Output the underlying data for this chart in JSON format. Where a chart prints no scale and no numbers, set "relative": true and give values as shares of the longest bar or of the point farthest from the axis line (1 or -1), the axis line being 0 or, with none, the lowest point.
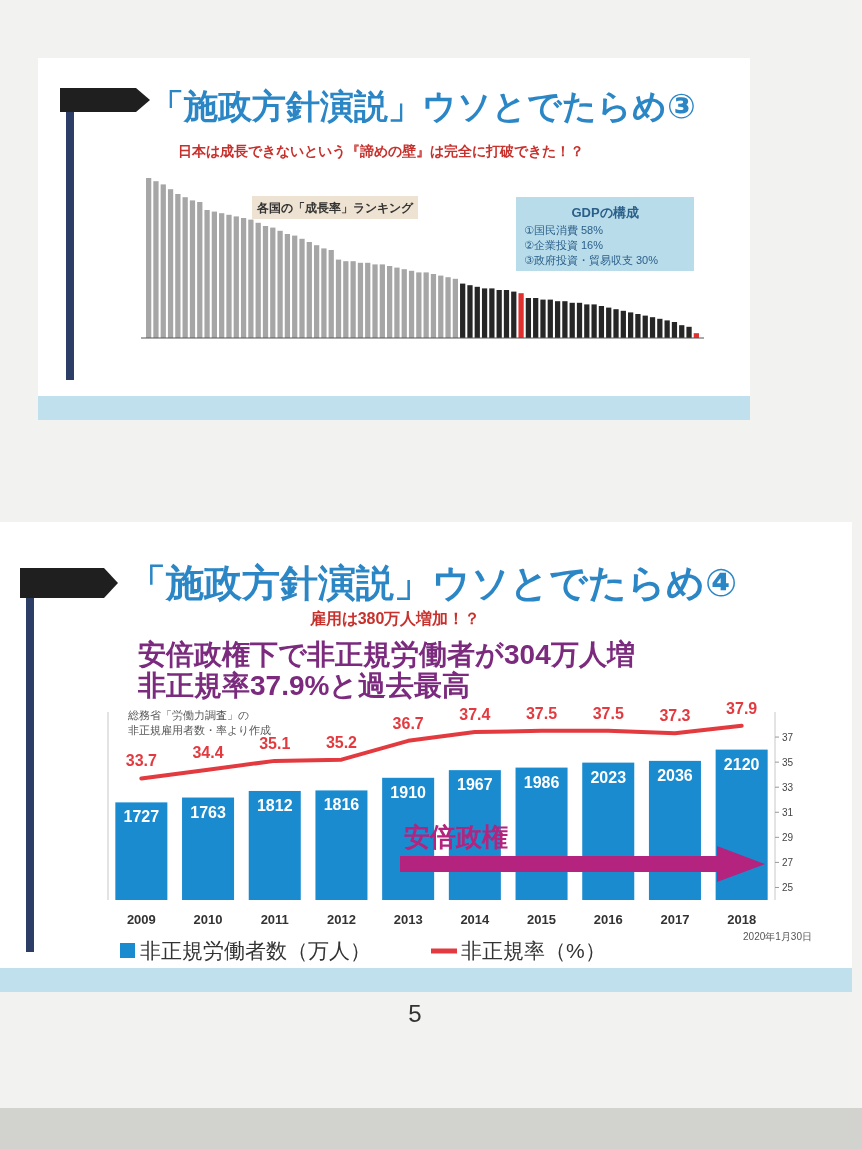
{
  "chart_data": [
    {
      "type": "bar",
      "title": "「施政方針演説」ウソとでたらめ③",
      "subtitle": "日本は成長できないという『諦めの壁』は完全に打破できた！？",
      "annotations": [
        "各国の「成長率」ランキング",
        "GDPの構成",
        "①国民消費 58%",
        "②企業投資 16%",
        "③政府投資・貿易収支 30%"
      ],
      "relative": true,
      "categories": [
        null,
        null,
        null,
        null,
        null,
        null,
        null,
        null,
        null,
        null,
        null,
        null,
        null,
        null,
        null,
        null,
        null,
        null,
        null,
        null,
        null,
        null,
        null,
        null,
        null,
        null,
        null,
        null,
        null,
        null,
        null,
        null,
        null,
        null,
        null,
        null,
        null,
        null,
        null,
        null,
        null,
        null,
        null,
        null,
        null,
        null,
        null,
        null,
        null,
        null,
        null,
        null,
        null,
        null,
        null,
        null,
        null,
        null,
        null,
        null,
        null,
        null,
        null,
        null,
        null,
        null,
        null,
        null,
        null,
        null,
        null,
        null,
        null,
        null,
        null,
        null
      ],
      "values": [
        1.0,
        0.98,
        0.96,
        0.93,
        0.9,
        0.88,
        0.86,
        0.85,
        0.8,
        0.79,
        0.78,
        0.77,
        0.76,
        0.75,
        0.74,
        0.72,
        0.7,
        0.69,
        0.67,
        0.65,
        0.64,
        0.62,
        0.6,
        0.58,
        0.56,
        0.55,
        0.49,
        0.48,
        0.48,
        0.47,
        0.47,
        0.46,
        0.46,
        0.45,
        0.44,
        0.43,
        0.42,
        0.41,
        0.41,
        0.4,
        0.39,
        0.38,
        0.37,
        0.34,
        0.33,
        0.32,
        0.31,
        0.31,
        0.3,
        0.3,
        0.29,
        0.28,
        0.25,
        0.25,
        0.24,
        0.24,
        0.23,
        0.23,
        0.22,
        0.22,
        0.21,
        0.21,
        0.2,
        0.19,
        0.18,
        0.17,
        0.16,
        0.15,
        0.14,
        0.13,
        0.12,
        0.11,
        0.1,
        0.08,
        0.07,
        0.03
      ],
      "colors": [
        "#a6a6a6",
        "#a6a6a6",
        "#a6a6a6",
        "#a6a6a6",
        "#a6a6a6",
        "#a6a6a6",
        "#a6a6a6",
        "#a6a6a6",
        "#a6a6a6",
        "#a6a6a6",
        "#a6a6a6",
        "#a6a6a6",
        "#a6a6a6",
        "#a6a6a6",
        "#a6a6a6",
        "#a6a6a6",
        "#a6a6a6",
        "#a6a6a6",
        "#a6a6a6",
        "#a6a6a6",
        "#a6a6a6",
        "#a6a6a6",
        "#a6a6a6",
        "#a6a6a6",
        "#a6a6a6",
        "#a6a6a6",
        "#a6a6a6",
        "#a6a6a6",
        "#a6a6a6",
        "#a6a6a6",
        "#a6a6a6",
        "#a6a6a6",
        "#a6a6a6",
        "#a6a6a6",
        "#a6a6a6",
        "#a6a6a6",
        "#a6a6a6",
        "#a6a6a6",
        "#a6a6a6",
        "#a6a6a6",
        "#a6a6a6",
        "#a6a6a6",
        "#a6a6a6",
        "#262626",
        "#262626",
        "#262626",
        "#262626",
        "#262626",
        "#262626",
        "#262626",
        "#262626",
        "#e03030",
        "#262626",
        "#262626",
        "#262626",
        "#262626",
        "#262626",
        "#262626",
        "#262626",
        "#262626",
        "#262626",
        "#262626",
        "#262626",
        "#262626",
        "#262626",
        "#262626",
        "#262626",
        "#262626",
        "#262626",
        "#262626",
        "#262626",
        "#262626",
        "#262626",
        "#262626",
        "#262626",
        "#e03030"
      ]
    },
    {
      "type": "bar",
      "title": "「施政方針演説」ウソとでたらめ④",
      "subtitle": "雇用は380万人増加！？",
      "annotations": [
        "安倍政権下で非正規労働者が304万人増",
        "非正規率37.9%と過去最高",
        "総務省「労働力調査」の",
        "非正規雇用者数・率より作成",
        "2020年1月30日",
        "5",
        "安倍政権"
      ],
      "categories": [
        "2009",
        "2010",
        "2011",
        "2012",
        "2013",
        "2014",
        "2015",
        "2016",
        "2017",
        "2018"
      ],
      "series": [
        {
          "name": "非正規労働者数（万人）",
          "type": "bar",
          "color": "#1b8bd0",
          "values": [
            1727,
            1763,
            1812,
            1816,
            1910,
            1967,
            1986,
            2023,
            2036,
            2120
          ]
        },
        {
          "name": "非正規率（%）",
          "type": "line",
          "axis": "y2",
          "color": "#e23a3f",
          "values": [
            33.7,
            34.4,
            35.1,
            35.2,
            36.7,
            37.4,
            37.5,
            37.5,
            37.3,
            37.9
          ]
        }
      ],
      "ylim": [
        1000,
        2400
      ],
      "y2lim": [
        24,
        39
      ],
      "y2ticks": [
        25,
        27,
        29,
        31,
        33,
        35,
        37
      ],
      "data_labels": true,
      "legend": "bottom"
    }
  ]
}
